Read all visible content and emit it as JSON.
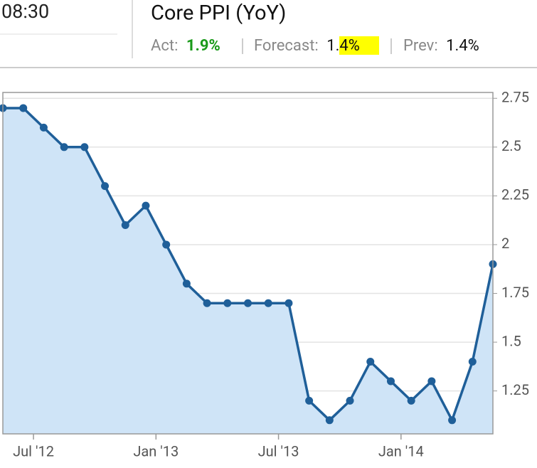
{
  "header": {
    "time": "08:30",
    "title": "Core PPI (YoY)",
    "actual": {
      "label": "Act:",
      "value": "1.9%"
    },
    "forecast": {
      "label": "Forecast:",
      "value": "1.4%"
    },
    "previous": {
      "label": "Prev:",
      "value": "1.4%"
    }
  },
  "chart_data": {
    "type": "area",
    "categories": [
      null,
      null,
      null,
      null,
      null,
      null,
      null,
      null,
      null,
      null,
      null,
      null,
      null,
      null,
      null,
      null,
      null,
      null,
      null,
      null,
      null,
      null,
      null,
      null,
      null
    ],
    "series": [
      {
        "color": "#1f5f99",
        "fill": "#cfe4f7",
        "values": [
          2.7,
          2.7,
          2.6,
          2.5,
          2.5,
          2.3,
          2.1,
          2.2,
          2.0,
          1.8,
          1.7,
          1.7,
          1.7,
          1.7,
          1.7,
          1.2,
          1.1,
          1.2,
          1.4,
          1.3,
          1.2,
          1.3,
          1.1,
          1.4,
          1.9
        ]
      }
    ],
    "xticks": [
      {
        "value": 1.5,
        "label": "Jul '12"
      },
      {
        "value": 7.5,
        "label": "Jan '13"
      },
      {
        "value": 13.5,
        "label": "Jul '13"
      },
      {
        "value": 19.5,
        "label": "Jan '14"
      }
    ],
    "ylim": [
      1.03,
      2.78
    ],
    "yticks": [
      2.75,
      2.5,
      2.25,
      2,
      1.75,
      1.5,
      1.25
    ],
    "grid": true,
    "y_axis_side": "right"
  }
}
